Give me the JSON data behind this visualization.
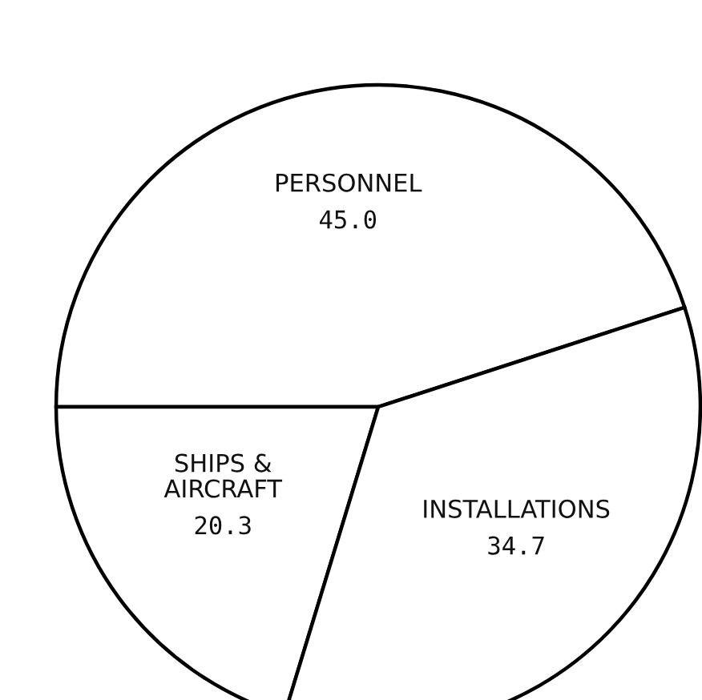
{
  "chart_data": {
    "type": "pie",
    "categories": [
      "PERSONNEL",
      "SHIPS &\nAIRCRAFT",
      "INSTALLATIONS"
    ],
    "values": [
      45.0,
      20.3,
      34.7
    ],
    "value_labels": [
      "45.0",
      "20.3",
      "34.7"
    ],
    "colors": [
      "#ffffff",
      "#ffffff",
      "#ffffff"
    ]
  }
}
